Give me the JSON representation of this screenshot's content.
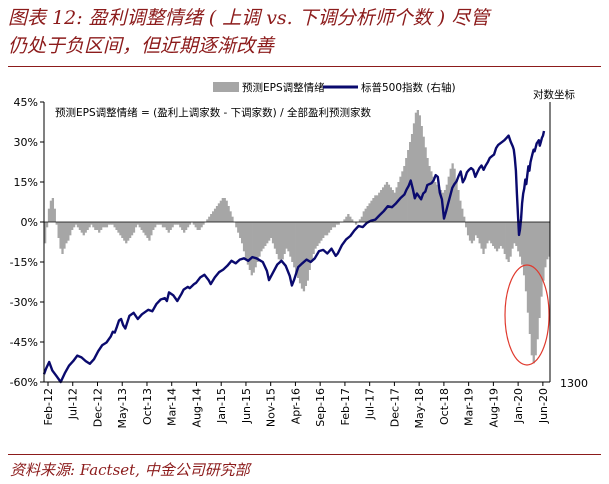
{
  "header": {
    "line1": "图表 12: 盈利调整情绪 ( 上调 vs. 下调分析师个数 ) 尽管",
    "line2": "仍处于负区间，但近期逐渐改善"
  },
  "source": "资料来源: Factset, 中金公司研究部",
  "colors": {
    "accent": "#8c1b1b",
    "bar": "#a6a6a6",
    "line": "#0a0a6e",
    "circle": "#e03a2e"
  },
  "chart_data": {
    "type": "bar+line",
    "legend": {
      "placement": "top",
      "entries": [
        "预测EPS调整情绪",
        "标普500指数 (右轴)"
      ]
    },
    "right_axis_label": "对数坐标",
    "right_axis_bottom_label": "1300",
    "annotation": "预测EPS调整情绪 = (盈利上调家数 - 下调家数) / 全部盈利预测家数",
    "left_axis": {
      "min": -0.6,
      "max": 0.45,
      "ticks": [
        "45%",
        "30%",
        "15%",
        "0%",
        "-15%",
        "-30%",
        "-45%",
        "-60%"
      ],
      "tick_values": [
        0.45,
        0.3,
        0.15,
        0,
        -0.15,
        -0.3,
        -0.45,
        -0.6
      ]
    },
    "x_ticks": [
      "Feb-12",
      "Jul-12",
      "Dec-12",
      "May-13",
      "Oct-13",
      "Mar-14",
      "Aug-14",
      "Jan-15",
      "Jun-15",
      "Nov-15",
      "Apr-16",
      "Sep-16",
      "Feb-17",
      "Jul-17",
      "Dec-17",
      "May-18",
      "Oct-18",
      "Mar-19",
      "Aug-19",
      "Jan-20",
      "Jun-20"
    ],
    "grid": false,
    "bars": {
      "name": "预测EPS调整情绪",
      "start": "Feb-12",
      "end": "Aug-20",
      "frequency": "weekly",
      "values": [
        -0.08,
        -0.02,
        0.05,
        0.08,
        0.09,
        0.05,
        -0.01,
        -0.06,
        -0.1,
        -0.12,
        -0.1,
        -0.08,
        -0.07,
        -0.05,
        -0.03,
        -0.02,
        -0.01,
        -0.02,
        -0.03,
        -0.04,
        -0.05,
        -0.04,
        -0.03,
        -0.02,
        -0.01,
        -0.02,
        -0.03,
        -0.03,
        -0.04,
        -0.03,
        -0.02,
        -0.02,
        -0.02,
        -0.01,
        -0.01,
        -0.01,
        -0.02,
        -0.03,
        -0.04,
        -0.05,
        -0.06,
        -0.07,
        -0.08,
        -0.07,
        -0.06,
        -0.05,
        -0.04,
        -0.02,
        -0.01,
        -0.02,
        -0.03,
        -0.04,
        -0.05,
        -0.06,
        -0.07,
        -0.05,
        -0.03,
        -0.02,
        -0.01,
        -0.01,
        -0.01,
        -0.02,
        -0.02,
        -0.03,
        -0.04,
        -0.03,
        -0.02,
        -0.01,
        -0.01,
        -0.01,
        -0.02,
        -0.03,
        -0.04,
        -0.03,
        -0.02,
        -0.01,
        0,
        -0.01,
        -0.02,
        -0.03,
        -0.03,
        -0.02,
        -0.01,
        0,
        0.01,
        0.02,
        0.03,
        0.04,
        0.05,
        0.06,
        0.07,
        0.08,
        0.09,
        0.09,
        0.08,
        0.06,
        0.04,
        0.02,
        0,
        -0.02,
        -0.04,
        -0.06,
        -0.08,
        -0.11,
        -0.14,
        -0.16,
        -0.18,
        -0.2,
        -0.19,
        -0.17,
        -0.15,
        -0.13,
        -0.11,
        -0.1,
        -0.09,
        -0.08,
        -0.07,
        -0.06,
        -0.08,
        -0.1,
        -0.12,
        -0.14,
        -0.15,
        -0.14,
        -0.12,
        -0.1,
        -0.11,
        -0.13,
        -0.15,
        -0.17,
        -0.19,
        -0.21,
        -0.23,
        -0.25,
        -0.26,
        -0.24,
        -0.22,
        -0.18,
        -0.15,
        -0.12,
        -0.1,
        -0.09,
        -0.08,
        -0.07,
        -0.06,
        -0.05,
        -0.05,
        -0.04,
        -0.03,
        -0.02,
        -0.02,
        -0.01,
        -0.01,
        0,
        0,
        0.01,
        0.02,
        0.03,
        0.02,
        0.01,
        0,
        -0.01,
        0,
        0.01,
        0.02,
        0.04,
        0.05,
        0.06,
        0.07,
        0.08,
        0.09,
        0.1,
        0.1,
        0.11,
        0.12,
        0.13,
        0.14,
        0.15,
        0.14,
        0.13,
        0.12,
        0.11,
        0.13,
        0.15,
        0.17,
        0.19,
        0.21,
        0.24,
        0.27,
        0.3,
        0.33,
        0.37,
        0.41,
        0.42,
        0.4,
        0.36,
        0.32,
        0.28,
        0.24,
        0.21,
        0.19,
        0.17,
        0.15,
        0.14,
        0.13,
        0.12,
        0.11,
        0.12,
        0.14,
        0.17,
        0.2,
        0.22,
        0.2,
        0.16,
        0.12,
        0.08,
        0.05,
        0.02,
        -0.02,
        -0.05,
        -0.07,
        -0.08,
        -0.07,
        -0.05,
        -0.06,
        -0.08,
        -0.1,
        -0.12,
        -0.1,
        -0.08,
        -0.07,
        -0.08,
        -0.09,
        -0.1,
        -0.11,
        -0.1,
        -0.09,
        -0.1,
        -0.12,
        -0.14,
        -0.15,
        -0.13,
        -0.1,
        -0.08,
        -0.09,
        -0.11,
        -0.13,
        -0.16,
        -0.2,
        -0.26,
        -0.34,
        -0.42,
        -0.5,
        -0.53,
        -0.5,
        -0.44,
        -0.36,
        -0.28,
        -0.22,
        -0.17,
        -0.14,
        -0.13
      ]
    },
    "line": {
      "name": "标普500指数 (右轴)",
      "start": "Feb-12",
      "end": "Aug-20",
      "scale": "log",
      "lower_reference": 1300,
      "points": [
        [
          0,
          1340
        ],
        [
          2,
          1370
        ],
        [
          5,
          1405
        ],
        [
          8,
          1360
        ],
        [
          12,
          1330
        ],
        [
          16,
          1300
        ],
        [
          20,
          1345
        ],
        [
          24,
          1385
        ],
        [
          28,
          1410
        ],
        [
          32,
          1440
        ],
        [
          36,
          1430
        ],
        [
          40,
          1410
        ],
        [
          44,
          1395
        ],
        [
          48,
          1420
        ],
        [
          52,
          1465
        ],
        [
          56,
          1500
        ],
        [
          60,
          1515
        ],
        [
          64,
          1550
        ],
        [
          66,
          1580
        ],
        [
          68,
          1575
        ],
        [
          70,
          1610
        ],
        [
          72,
          1650
        ],
        [
          74,
          1660
        ],
        [
          76,
          1620
        ],
        [
          78,
          1600
        ],
        [
          82,
          1680
        ],
        [
          86,
          1700
        ],
        [
          90,
          1660
        ],
        [
          94,
          1690
        ],
        [
          96,
          1700
        ],
        [
          100,
          1720
        ],
        [
          104,
          1710
        ],
        [
          108,
          1760
        ],
        [
          112,
          1790
        ],
        [
          116,
          1800
        ],
        [
          118,
          1780
        ],
        [
          120,
          1840
        ],
        [
          124,
          1820
        ],
        [
          128,
          1780
        ],
        [
          132,
          1830
        ],
        [
          134,
          1860
        ],
        [
          138,
          1880
        ],
        [
          140,
          1870
        ],
        [
          144,
          1900
        ],
        [
          146,
          1910
        ],
        [
          150,
          1950
        ],
        [
          154,
          1970
        ],
        [
          158,
          1930
        ],
        [
          160,
          1900
        ],
        [
          164,
          1950
        ],
        [
          168,
          1990
        ],
        [
          172,
          2010
        ],
        [
          176,
          2040
        ],
        [
          180,
          2080
        ],
        [
          184,
          2060
        ],
        [
          188,
          2090
        ],
        [
          192,
          2100
        ],
        [
          196,
          2080
        ],
        [
          200,
          2110
        ],
        [
          204,
          2100
        ],
        [
          208,
          2080
        ],
        [
          210,
          2070
        ],
        [
          214,
          2000
        ],
        [
          216,
          1930
        ],
        [
          220,
          1990
        ],
        [
          224,
          2050
        ],
        [
          228,
          2080
        ],
        [
          232,
          2040
        ],
        [
          236,
          1960
        ],
        [
          238,
          1890
        ],
        [
          240,
          1930
        ],
        [
          244,
          2030
        ],
        [
          248,
          2060
        ],
        [
          252,
          2090
        ],
        [
          256,
          2070
        ],
        [
          260,
          2100
        ],
        [
          264,
          2160
        ],
        [
          268,
          2170
        ],
        [
          272,
          2140
        ],
        [
          276,
          2180
        ],
        [
          280,
          2120
        ],
        [
          282,
          2140
        ],
        [
          286,
          2210
        ],
        [
          290,
          2260
        ],
        [
          294,
          2290
        ],
        [
          298,
          2340
        ],
        [
          302,
          2380
        ],
        [
          306,
          2370
        ],
        [
          310,
          2410
        ],
        [
          314,
          2430
        ],
        [
          318,
          2440
        ],
        [
          322,
          2480
        ],
        [
          326,
          2520
        ],
        [
          330,
          2570
        ],
        [
          334,
          2560
        ],
        [
          338,
          2600
        ],
        [
          342,
          2650
        ],
        [
          346,
          2690
        ],
        [
          348,
          2740
        ],
        [
          350,
          2780
        ],
        [
          352,
          2840
        ],
        [
          354,
          2750
        ],
        [
          356,
          2650
        ],
        [
          358,
          2700
        ],
        [
          360,
          2670
        ],
        [
          362,
          2640
        ],
        [
          364,
          2700
        ],
        [
          366,
          2720
        ],
        [
          368,
          2790
        ],
        [
          370,
          2800
        ],
        [
          372,
          2810
        ],
        [
          374,
          2840
        ],
        [
          376,
          2900
        ],
        [
          378,
          2880
        ],
        [
          380,
          2710
        ],
        [
          382,
          2640
        ],
        [
          384,
          2450
        ],
        [
          386,
          2520
        ],
        [
          388,
          2600
        ],
        [
          390,
          2680
        ],
        [
          392,
          2760
        ],
        [
          394,
          2800
        ],
        [
          396,
          2830
        ],
        [
          398,
          2890
        ],
        [
          400,
          2940
        ],
        [
          402,
          2820
        ],
        [
          404,
          2860
        ],
        [
          406,
          2930
        ],
        [
          408,
          2960
        ],
        [
          410,
          2980
        ],
        [
          412,
          2960
        ],
        [
          414,
          2880
        ],
        [
          416,
          2930
        ],
        [
          418,
          2980
        ],
        [
          420,
          3010
        ],
        [
          422,
          2960
        ],
        [
          424,
          3010
        ],
        [
          426,
          3050
        ],
        [
          428,
          3100
        ],
        [
          430,
          3120
        ],
        [
          432,
          3140
        ],
        [
          434,
          3220
        ],
        [
          436,
          3260
        ],
        [
          438,
          3280
        ],
        [
          440,
          3300
        ],
        [
          442,
          3320
        ],
        [
          444,
          3350
        ],
        [
          446,
          3380
        ],
        [
          448,
          3300
        ],
        [
          450,
          3240
        ],
        [
          451,
          3200
        ],
        [
          452,
          3100
        ],
        [
          453,
          2950
        ],
        [
          454,
          2700
        ],
        [
          455,
          2480
        ],
        [
          456,
          2300
        ],
        [
          457,
          2350
        ],
        [
          458,
          2450
        ],
        [
          459,
          2600
        ],
        [
          460,
          2700
        ],
        [
          461,
          2750
        ],
        [
          462,
          2850
        ],
        [
          463,
          2800
        ],
        [
          464,
          2900
        ],
        [
          465,
          3000
        ],
        [
          466,
          2950
        ],
        [
          467,
          3050
        ],
        [
          468,
          3100
        ],
        [
          469,
          3150
        ],
        [
          470,
          3200
        ],
        [
          471,
          3180
        ],
        [
          472,
          3230
        ],
        [
          473,
          3280
        ],
        [
          474,
          3300
        ],
        [
          475,
          3320
        ],
        [
          476,
          3250
        ],
        [
          477,
          3300
        ],
        [
          478,
          3350
        ],
        [
          479,
          3380
        ],
        [
          480,
          3440
        ]
      ]
    }
  }
}
